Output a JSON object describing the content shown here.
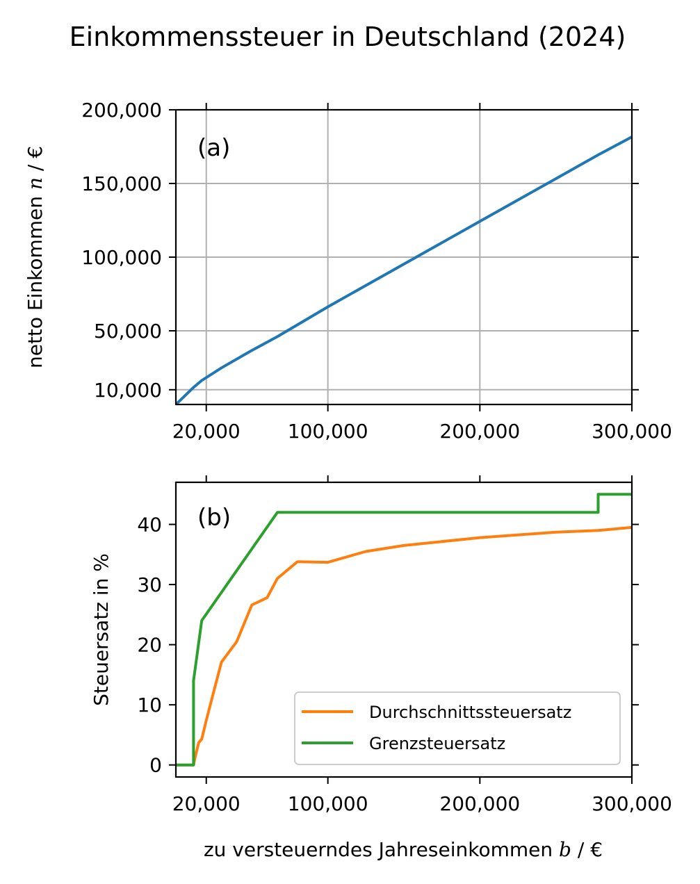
{
  "title": "Einkommenssteuer in Deutschland (2024)",
  "chart_data": [
    {
      "panel_label": "(a)",
      "type": "line",
      "ylabel": "netto Einkommen",
      "ylabel_var": "n",
      "ylabel_unit": "€",
      "xlim": [
        0,
        300000
      ],
      "ylim": [
        0,
        200000
      ],
      "xticks": [
        {
          "value": 20000,
          "label": "20,000"
        },
        {
          "value": 100000,
          "label": "100,000"
        },
        {
          "value": 200000,
          "label": "200,000"
        },
        {
          "value": 300000,
          "label": "300,000"
        }
      ],
      "yticks": [
        {
          "value": 10000,
          "label": "10,000"
        },
        {
          "value": 50000,
          "label": "50,000"
        },
        {
          "value": 100000,
          "label": "100,000"
        },
        {
          "value": 150000,
          "label": "150,000"
        },
        {
          "value": 200000,
          "label": "200,000"
        }
      ],
      "grid": true,
      "series": [
        {
          "color": "#1f77b4",
          "x": [
            0,
            11604,
            17005,
            30000,
            50000,
            66760,
            100000,
            150000,
            200000,
            250000,
            277826,
            300000
          ],
          "y": [
            0,
            11604,
            16271,
            24862,
            36707,
            46036,
            66270,
            95270,
            124270,
            153270,
            169409,
            181606
          ]
        }
      ]
    },
    {
      "panel_label": "(b)",
      "type": "line",
      "ylabel": "Steuersatz in %",
      "xlabel": "zu versteuerndes Jahreseinkommen",
      "xlabel_var": "b",
      "xlabel_unit": "€",
      "xlim": [
        0,
        300000
      ],
      "ylim": [
        -2,
        47
      ],
      "xticks": [
        {
          "value": 20000,
          "label": "20,000"
        },
        {
          "value": 100000,
          "label": "100,000"
        },
        {
          "value": 200000,
          "label": "200,000"
        },
        {
          "value": 300000,
          "label": "300,000"
        }
      ],
      "yticks": [
        {
          "value": 0,
          "label": "0"
        },
        {
          "value": 10,
          "label": "10"
        },
        {
          "value": 20,
          "label": "20"
        },
        {
          "value": 30,
          "label": "30"
        },
        {
          "value": 40,
          "label": "40"
        }
      ],
      "grid": false,
      "legend_position": "lower-right",
      "series": [
        {
          "name": "Durchschnittssteuersatz",
          "color": "#ff7f0e",
          "x": [
            0,
            11604,
            13000,
            15000,
            17005,
            20000,
            25000,
            30000,
            40000,
            50000,
            60000,
            66760,
            80000,
            100000,
            125000,
            150000,
            200000,
            250000,
            277826,
            300000
          ],
          "y": [
            0,
            0,
            1.6,
            3.7,
            4.3,
            7.4,
            12.3,
            17.1,
            20.5,
            26.6,
            27.8,
            31.0,
            33.8,
            33.7,
            35.5,
            36.5,
            37.8,
            38.7,
            39.0,
            39.5
          ]
        },
        {
          "name": "Grenzsteuersatz",
          "color": "#2ca02c",
          "x": [
            0,
            11604,
            11604,
            17005,
            17005,
            66760,
            277826,
            277826,
            300000
          ],
          "y": [
            0,
            0,
            14,
            24,
            24,
            42,
            42,
            45,
            45
          ]
        }
      ]
    }
  ]
}
